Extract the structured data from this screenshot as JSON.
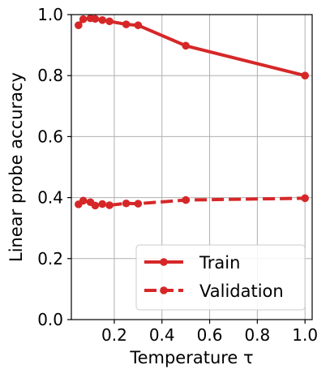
{
  "chart_data": {
    "type": "line",
    "title": "",
    "xlabel": "Temperature τ",
    "ylabel": "Linear probe accuracy",
    "xlim": [
      0.02,
      1.03
    ],
    "ylim": [
      0.0,
      1.0
    ],
    "xticks": [
      0.2,
      0.4,
      0.6,
      0.8,
      1.0
    ],
    "xtick_labels": [
      "0.2",
      "0.4",
      "0.6",
      "0.8",
      "1.0"
    ],
    "yticks": [
      0.0,
      0.2,
      0.4,
      0.6,
      0.8,
      1.0
    ],
    "ytick_labels": [
      "0.0",
      "0.2",
      "0.4",
      "0.6",
      "0.8",
      "1.0"
    ],
    "grid": true,
    "legend_position": "bottom-right",
    "color": "#d62728",
    "series": [
      {
        "name": "Train",
        "style": "solid",
        "x": [
          0.05,
          0.07,
          0.1,
          0.12,
          0.15,
          0.18,
          0.25,
          0.3,
          0.5,
          1.0
        ],
        "y": [
          0.965,
          0.985,
          0.988,
          0.986,
          0.982,
          0.978,
          0.968,
          0.965,
          0.898,
          0.8
        ]
      },
      {
        "name": "Validation",
        "style": "dashed",
        "x": [
          0.05,
          0.07,
          0.1,
          0.12,
          0.15,
          0.18,
          0.25,
          0.3,
          0.5,
          1.0
        ],
        "y": [
          0.378,
          0.39,
          0.385,
          0.374,
          0.379,
          0.375,
          0.381,
          0.38,
          0.392,
          0.398
        ]
      }
    ]
  }
}
